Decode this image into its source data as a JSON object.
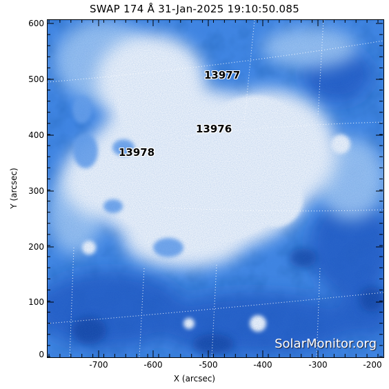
{
  "title": "SWAP 174 Å 31-Jan-2025 19:10:50.085",
  "active_regions": [
    {
      "id": "13977",
      "label": "13977"
    },
    {
      "id": "13976",
      "label": "13976"
    },
    {
      "id": "13978",
      "label": "13978"
    }
  ],
  "x_axis": {
    "label": "X (arcsec)",
    "ticks": [
      "-700",
      "-600",
      "-500",
      "-400",
      "-300",
      "-200"
    ]
  },
  "y_axis": {
    "label": "Y (arcsec)",
    "ticks": [
      "600",
      "500",
      "400",
      "300",
      "200",
      "100",
      "0"
    ]
  },
  "watermark": "SolarMonitor.org",
  "colors": {
    "background": "#ffffff",
    "image_dark": "#0a3aa0",
    "image_mid": "#3f86e6",
    "image_light": "#cfe3fb"
  }
}
